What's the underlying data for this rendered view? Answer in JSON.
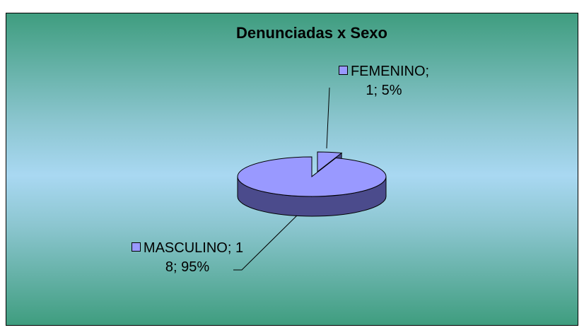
{
  "chart_data": {
    "type": "pie",
    "title": "Denunciadas x Sexo",
    "values": [
      1,
      18
    ],
    "value_labels": [
      "FEMENINO; 1; 5%",
      "MASCULINO; 18; 95%"
    ],
    "color": "#9999ff",
    "side_color": "#4b4b8c"
  }
}
